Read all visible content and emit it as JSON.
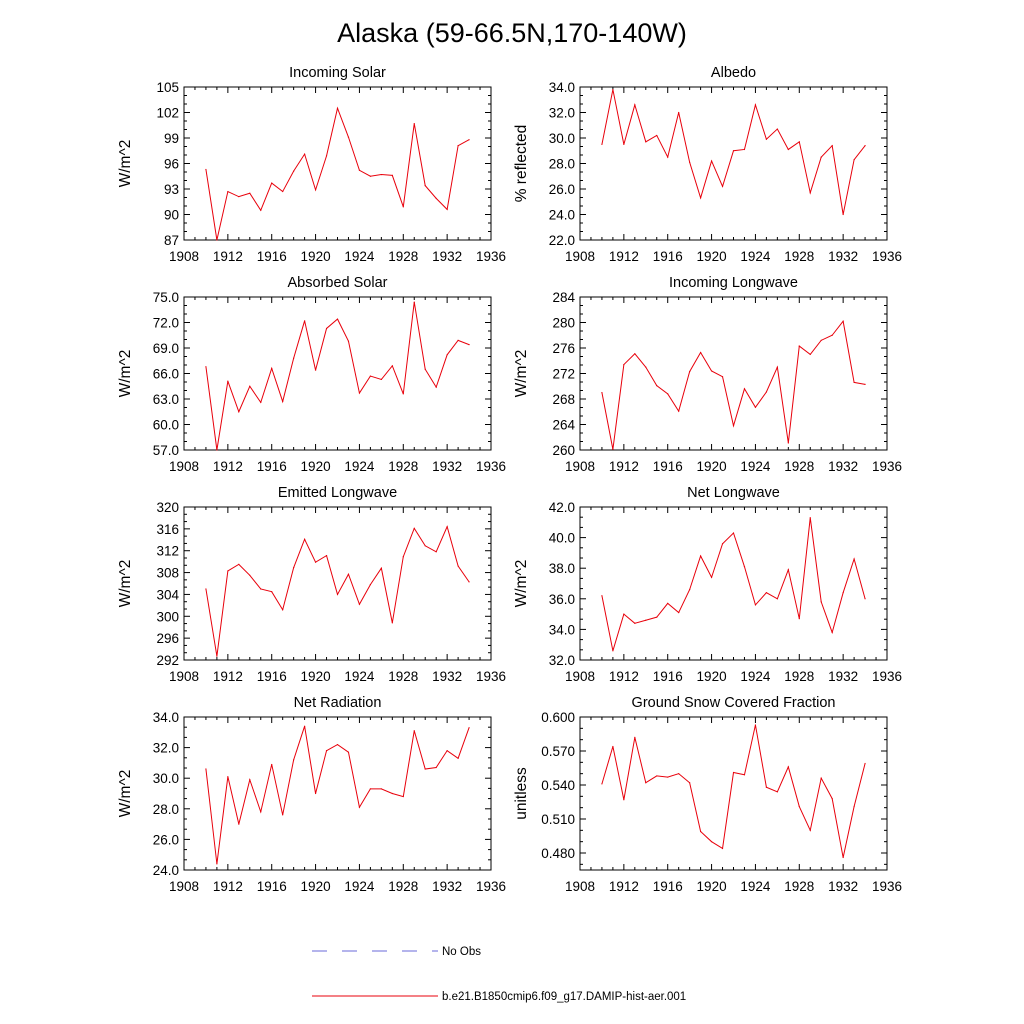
{
  "figure": {
    "title": "Alaska (59-66.5N,170-140W)",
    "legend": [
      {
        "label": "No Obs",
        "color": "#6a6ad8",
        "style": "dashed"
      },
      {
        "label": "b.e21.B1850cmip6.f09_g17.DAMIP-hist-aer.001",
        "color": "#e8000b",
        "style": "solid"
      }
    ]
  },
  "chart_data": [
    {
      "type": "line",
      "title": "Incoming Solar",
      "ylabel": "W/m^2",
      "xlim": [
        1908,
        1936
      ],
      "xticks": [
        1908,
        1912,
        1916,
        1920,
        1924,
        1928,
        1932,
        1936
      ],
      "ylim": [
        87,
        105
      ],
      "yticks": [
        "87",
        "90",
        "93",
        "96",
        "99",
        "102",
        "105"
      ],
      "x": [
        1910,
        1911,
        1912,
        1913,
        1914,
        1915,
        1916,
        1917,
        1918,
        1919,
        1920,
        1921,
        1922,
        1923,
        1924,
        1925,
        1926,
        1927,
        1928,
        1929,
        1930,
        1931,
        1932,
        1933,
        1934
      ],
      "series": [
        {
          "color": "#e8000b",
          "values": [
            95.3,
            87.0,
            92.7,
            92.1,
            92.5,
            90.5,
            93.7,
            92.7,
            95.1,
            97.1,
            92.9,
            96.9,
            102.5,
            99.1,
            95.2,
            94.5,
            94.7,
            94.6,
            90.9,
            100.7,
            93.4,
            91.9,
            90.6,
            98.1,
            98.8
          ]
        }
      ]
    },
    {
      "type": "line",
      "title": "Albedo",
      "ylabel": "% reflected",
      "xlim": [
        1908,
        1936
      ],
      "xticks": [
        1908,
        1912,
        1916,
        1920,
        1924,
        1928,
        1932,
        1936
      ],
      "ylim": [
        22,
        34
      ],
      "yticks": [
        "22.0",
        "24.0",
        "26.0",
        "28.0",
        "30.0",
        "32.0",
        "34.0"
      ],
      "x": [
        1910,
        1911,
        1912,
        1913,
        1914,
        1915,
        1916,
        1917,
        1918,
        1919,
        1920,
        1921,
        1922,
        1923,
        1924,
        1925,
        1926,
        1927,
        1928,
        1929,
        1930,
        1931,
        1932,
        1933,
        1934
      ],
      "series": [
        {
          "color": "#e8000b",
          "values": [
            29.5,
            33.8,
            29.5,
            32.6,
            29.7,
            30.2,
            28.5,
            32.0,
            28.1,
            25.3,
            28.2,
            26.2,
            29.0,
            29.1,
            32.6,
            29.9,
            30.7,
            29.1,
            29.7,
            25.7,
            28.5,
            29.4,
            24.0,
            28.3,
            29.4
          ]
        }
      ]
    },
    {
      "type": "line",
      "title": "Absorbed Solar",
      "ylabel": "W/m^2",
      "xlim": [
        1908,
        1936
      ],
      "xticks": [
        1908,
        1912,
        1916,
        1920,
        1924,
        1928,
        1932,
        1936
      ],
      "ylim": [
        57,
        75
      ],
      "yticks": [
        "57.0",
        "60.0",
        "63.0",
        "66.0",
        "69.0",
        "72.0",
        "75.0"
      ],
      "x": [
        1910,
        1911,
        1912,
        1913,
        1914,
        1915,
        1916,
        1917,
        1918,
        1919,
        1920,
        1921,
        1922,
        1923,
        1924,
        1925,
        1926,
        1927,
        1928,
        1929,
        1930,
        1931,
        1932,
        1933,
        1934
      ],
      "series": [
        {
          "color": "#e8000b",
          "values": [
            66.8,
            57.0,
            65.1,
            61.5,
            64.5,
            62.6,
            66.6,
            62.7,
            67.8,
            72.2,
            66.4,
            71.3,
            72.4,
            69.8,
            63.7,
            65.7,
            65.3,
            66.9,
            63.6,
            74.4,
            66.5,
            64.4,
            68.2,
            69.9,
            69.4
          ]
        }
      ]
    },
    {
      "type": "line",
      "title": "Incoming Longwave",
      "ylabel": "W/m^2",
      "xlim": [
        1908,
        1936
      ],
      "xticks": [
        1908,
        1912,
        1916,
        1920,
        1924,
        1928,
        1932,
        1936
      ],
      "ylim": [
        260,
        284
      ],
      "yticks": [
        "260",
        "264",
        "268",
        "272",
        "276",
        "280",
        "284"
      ],
      "x": [
        1910,
        1911,
        1912,
        1913,
        1914,
        1915,
        1916,
        1917,
        1918,
        1919,
        1920,
        1921,
        1922,
        1923,
        1924,
        1925,
        1926,
        1927,
        1928,
        1929,
        1930,
        1931,
        1932,
        1933,
        1934
      ],
      "series": [
        {
          "color": "#e8000b",
          "values": [
            269.0,
            260.1,
            273.4,
            275.1,
            273.0,
            270.1,
            268.8,
            266.1,
            272.3,
            275.3,
            272.4,
            271.5,
            263.8,
            269.6,
            266.7,
            269.1,
            273.0,
            261.1,
            276.3,
            275.0,
            277.2,
            278.0,
            280.2,
            270.6,
            270.3
          ]
        }
      ]
    },
    {
      "type": "line",
      "title": "Emitted Longwave",
      "ylabel": "W/m^2",
      "xlim": [
        1908,
        1936
      ],
      "xticks": [
        1908,
        1912,
        1916,
        1920,
        1924,
        1928,
        1932,
        1936
      ],
      "ylim": [
        292,
        320
      ],
      "yticks": [
        "292",
        "296",
        "300",
        "304",
        "308",
        "312",
        "316",
        "320"
      ],
      "x": [
        1910,
        1911,
        1912,
        1913,
        1914,
        1915,
        1916,
        1917,
        1918,
        1919,
        1920,
        1921,
        1922,
        1923,
        1924,
        1925,
        1926,
        1927,
        1928,
        1929,
        1930,
        1931,
        1932,
        1933,
        1934
      ],
      "series": [
        {
          "color": "#e8000b",
          "values": [
            305.0,
            292.7,
            308.3,
            309.5,
            307.5,
            305.0,
            304.5,
            301.2,
            308.9,
            314.1,
            309.9,
            311.1,
            304.0,
            307.7,
            302.2,
            305.8,
            308.8,
            298.8,
            310.9,
            316.1,
            312.9,
            311.8,
            316.4,
            309.2,
            306.3
          ]
        }
      ]
    },
    {
      "type": "line",
      "title": "Net Longwave",
      "ylabel": "W/m^2",
      "xlim": [
        1908,
        1936
      ],
      "xticks": [
        1908,
        1912,
        1916,
        1920,
        1924,
        1928,
        1932,
        1936
      ],
      "ylim": [
        32,
        42
      ],
      "yticks": [
        "32.0",
        "34.0",
        "36.0",
        "38.0",
        "40.0",
        "42.0"
      ],
      "x": [
        1910,
        1911,
        1912,
        1913,
        1914,
        1915,
        1916,
        1917,
        1918,
        1919,
        1920,
        1921,
        1922,
        1923,
        1924,
        1925,
        1926,
        1927,
        1928,
        1929,
        1930,
        1931,
        1932,
        1933,
        1934
      ],
      "series": [
        {
          "color": "#e8000b",
          "values": [
            36.2,
            32.6,
            35.0,
            34.4,
            34.6,
            34.8,
            35.7,
            35.1,
            36.6,
            38.8,
            37.4,
            39.6,
            40.3,
            38.1,
            35.6,
            36.4,
            36.0,
            37.9,
            34.7,
            41.3,
            35.8,
            33.8,
            36.4,
            38.6,
            36.0
          ]
        }
      ]
    },
    {
      "type": "line",
      "title": "Net Radiation",
      "ylabel": "W/m^2",
      "xlim": [
        1908,
        1936
      ],
      "xticks": [
        1908,
        1912,
        1916,
        1920,
        1924,
        1928,
        1932,
        1936
      ],
      "ylim": [
        24,
        34
      ],
      "yticks": [
        "24.0",
        "26.0",
        "28.0",
        "30.0",
        "32.0",
        "34.0"
      ],
      "x": [
        1910,
        1911,
        1912,
        1913,
        1914,
        1915,
        1916,
        1917,
        1918,
        1919,
        1920,
        1921,
        1922,
        1923,
        1924,
        1925,
        1926,
        1927,
        1928,
        1929,
        1930,
        1931,
        1932,
        1933,
        1934
      ],
      "series": [
        {
          "color": "#e8000b",
          "values": [
            30.6,
            24.4,
            30.1,
            27.0,
            29.9,
            27.8,
            30.9,
            27.6,
            31.2,
            33.4,
            29.0,
            31.8,
            32.2,
            31.7,
            28.1,
            29.3,
            29.3,
            29.0,
            28.8,
            33.1,
            30.6,
            30.7,
            31.8,
            31.3,
            33.3
          ]
        }
      ]
    },
    {
      "type": "line",
      "title": "Ground Snow Covered Fraction",
      "ylabel": "unitless",
      "xlim": [
        1908,
        1936
      ],
      "xticks": [
        1908,
        1912,
        1916,
        1920,
        1924,
        1928,
        1932,
        1936
      ],
      "ylim": [
        0.465,
        0.6
      ],
      "yticks": [
        "0.480",
        "0.510",
        "0.540",
        "0.570",
        "0.600"
      ],
      "x": [
        1910,
        1911,
        1912,
        1913,
        1914,
        1915,
        1916,
        1917,
        1918,
        1919,
        1920,
        1921,
        1922,
        1923,
        1924,
        1925,
        1926,
        1927,
        1928,
        1929,
        1930,
        1931,
        1932,
        1933,
        1934
      ],
      "series": [
        {
          "color": "#e8000b",
          "values": [
            0.541,
            0.574,
            0.527,
            0.582,
            0.542,
            0.548,
            0.547,
            0.55,
            0.542,
            0.499,
            0.49,
            0.484,
            0.551,
            0.549,
            0.593,
            0.538,
            0.534,
            0.556,
            0.521,
            0.5,
            0.546,
            0.528,
            0.476,
            0.521,
            0.559
          ]
        }
      ]
    }
  ]
}
